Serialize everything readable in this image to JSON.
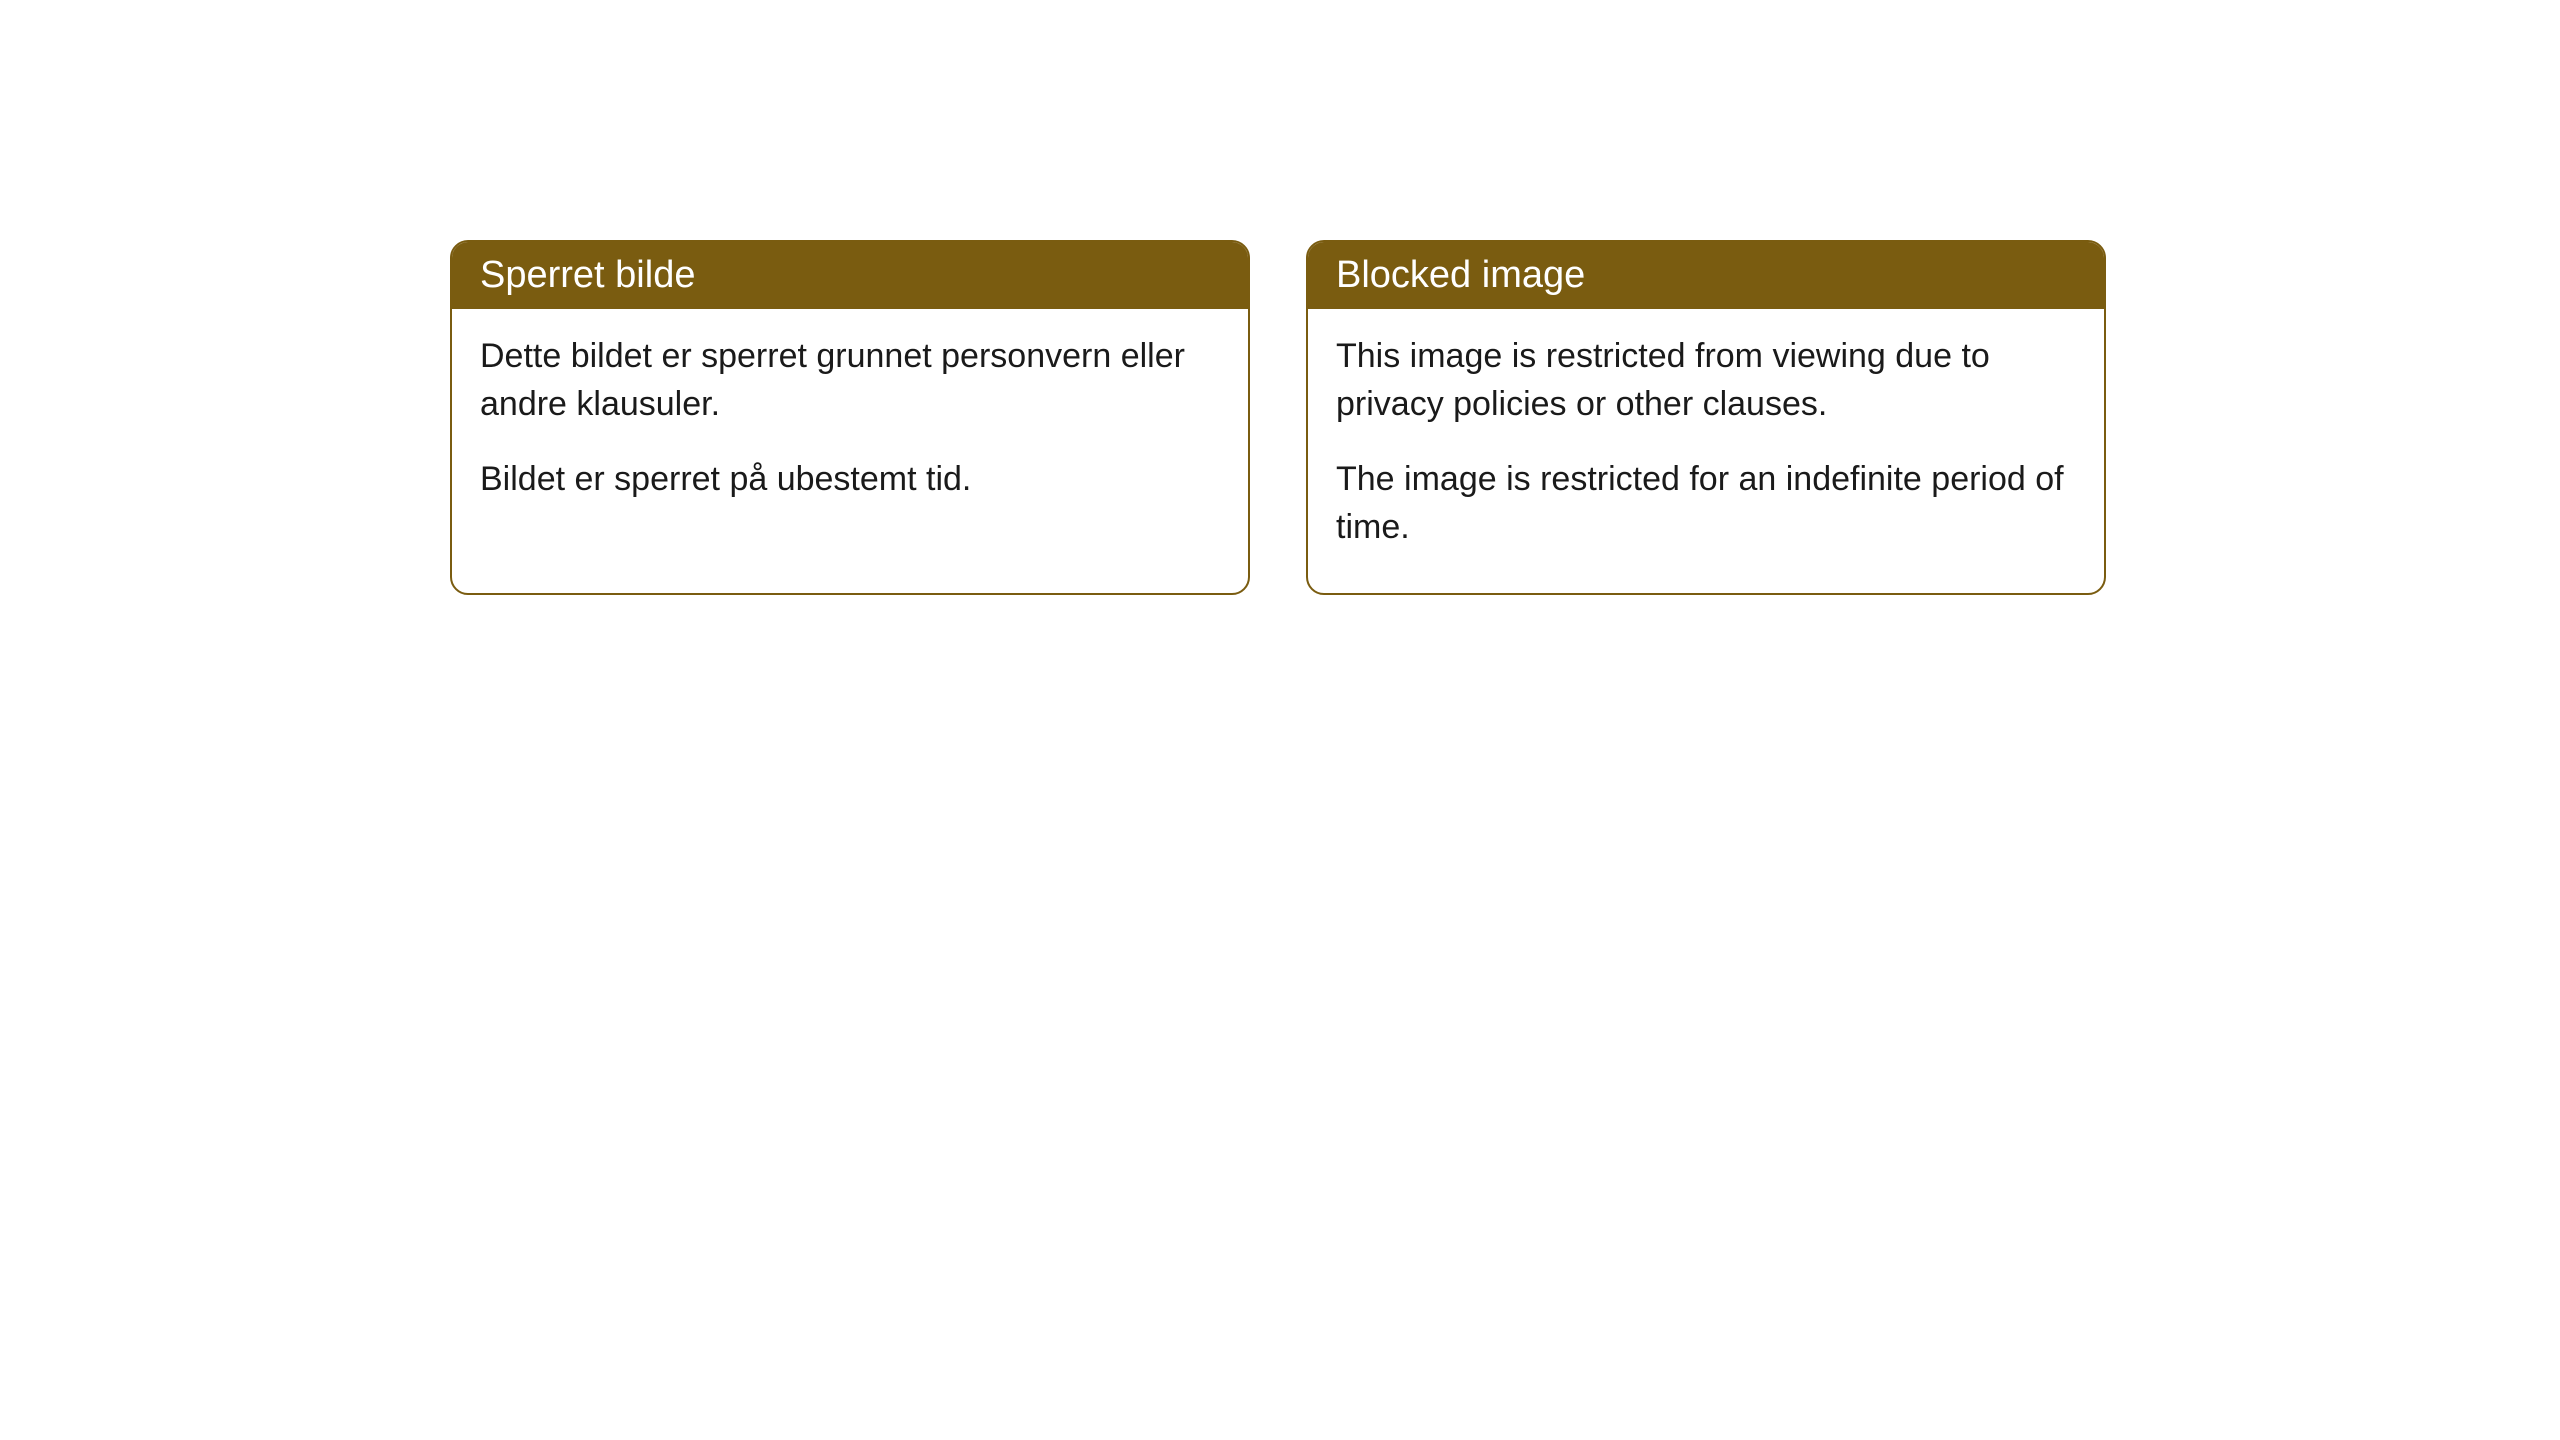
{
  "cards": [
    {
      "title": "Sperret bilde",
      "paragraph1": "Dette bildet er sperret grunnet personvern eller andre klausuler.",
      "paragraph2": "Bildet er sperret på ubestemt tid."
    },
    {
      "title": "Blocked image",
      "paragraph1": "This image is restricted from viewing due to privacy policies or other clauses.",
      "paragraph2": "The image is restricted for an indefinite period of time."
    }
  ],
  "style": {
    "header_bg": "#7a5c10",
    "header_text_color": "#ffffff",
    "border_color": "#7a5c10",
    "body_bg": "#ffffff",
    "body_text_color": "#1a1a1a",
    "border_radius": 18,
    "header_fontsize": 38,
    "body_fontsize": 34
  }
}
